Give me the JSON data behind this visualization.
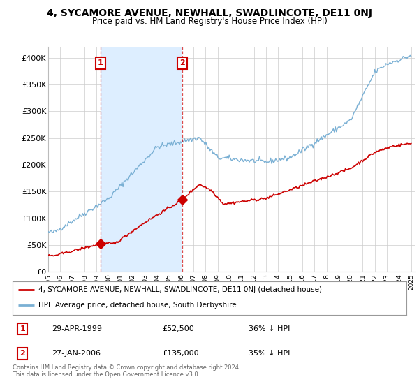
{
  "title": "4, SYCAMORE AVENUE, NEWHALL, SWADLINCOTE, DE11 0NJ",
  "subtitle": "Price paid vs. HM Land Registry's House Price Index (HPI)",
  "ylabel_ticks": [
    "£0",
    "£50K",
    "£100K",
    "£150K",
    "£200K",
    "£250K",
    "£300K",
    "£350K",
    "£400K"
  ],
  "ytick_vals": [
    0,
    50000,
    100000,
    150000,
    200000,
    250000,
    300000,
    350000,
    400000
  ],
  "ylim": [
    0,
    420000
  ],
  "xlim_start": 1995.0,
  "xlim_end": 2025.3,
  "hpi_color": "#7ab0d4",
  "price_color": "#cc0000",
  "shade_color": "#ddeeff",
  "marker1_x": 1999.33,
  "marker1_y": 52500,
  "marker2_x": 2006.07,
  "marker2_y": 135000,
  "vline1_x": 1999.33,
  "vline2_x": 2006.07,
  "legend_label1": "4, SYCAMORE AVENUE, NEWHALL, SWADLINCOTE, DE11 0NJ (detached house)",
  "legend_label2": "HPI: Average price, detached house, South Derbyshire",
  "ann1_x": 1999.33,
  "ann2_x": 2006.07,
  "ann_y": 390000,
  "table_row1": [
    "1",
    "29-APR-1999",
    "£52,500",
    "36% ↓ HPI"
  ],
  "table_row2": [
    "2",
    "27-JAN-2006",
    "£135,000",
    "35% ↓ HPI"
  ],
  "footnote": "Contains HM Land Registry data © Crown copyright and database right 2024.\nThis data is licensed under the Open Government Licence v3.0.",
  "bg_color": "#ffffff",
  "grid_color": "#cccccc"
}
